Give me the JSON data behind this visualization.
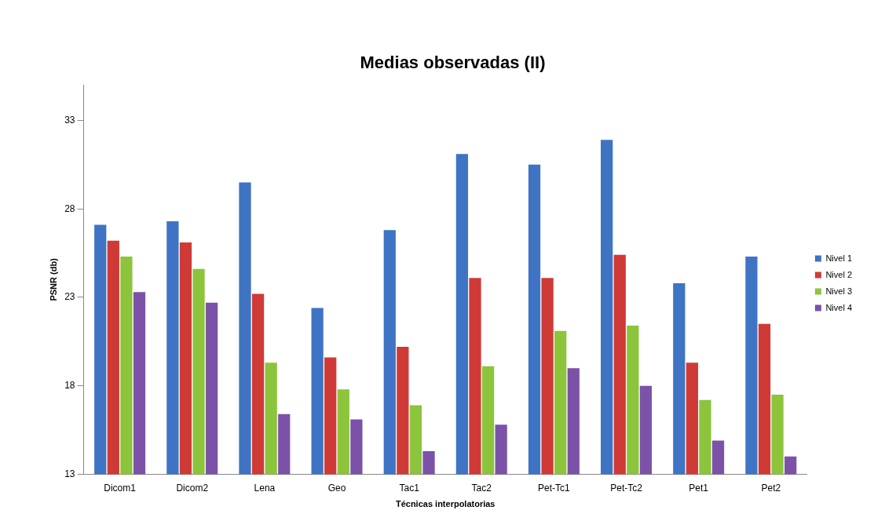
{
  "chart_data": {
    "type": "bar",
    "title": "Medias observadas (II)",
    "xlabel": "Técnicas interpolatorias",
    "ylabel": "PSNR (db)",
    "categories": [
      "Dicom1",
      "Dicom2",
      "Lena",
      "Geo",
      "Tac1",
      "Tac2",
      "Pet-Tc1",
      "Pet-Tc2",
      "Pet1",
      "Pet2"
    ],
    "series": [
      {
        "name": "Nivel 1",
        "color": "#3f74c4",
        "values": [
          27.1,
          27.3,
          29.5,
          22.4,
          26.8,
          31.1,
          30.5,
          31.9,
          23.8,
          25.3
        ]
      },
      {
        "name": "Nivel 2",
        "color": "#d03a36",
        "values": [
          26.2,
          26.1,
          23.2,
          19.6,
          20.2,
          24.1,
          24.1,
          25.4,
          19.3,
          21.5
        ]
      },
      {
        "name": "Nivel 3",
        "color": "#8cc43c",
        "values": [
          25.3,
          24.6,
          19.3,
          17.8,
          16.9,
          19.1,
          21.1,
          21.4,
          17.2,
          17.5
        ]
      },
      {
        "name": "Nivel 4",
        "color": "#7b52a8",
        "values": [
          23.3,
          22.7,
          16.4,
          16.1,
          14.3,
          15.8,
          19.0,
          18.0,
          14.9,
          14.0
        ]
      }
    ],
    "ylim": [
      13,
      35
    ],
    "yticks": [
      13,
      18,
      23,
      28,
      33
    ],
    "grid": false,
    "legend": "right"
  }
}
